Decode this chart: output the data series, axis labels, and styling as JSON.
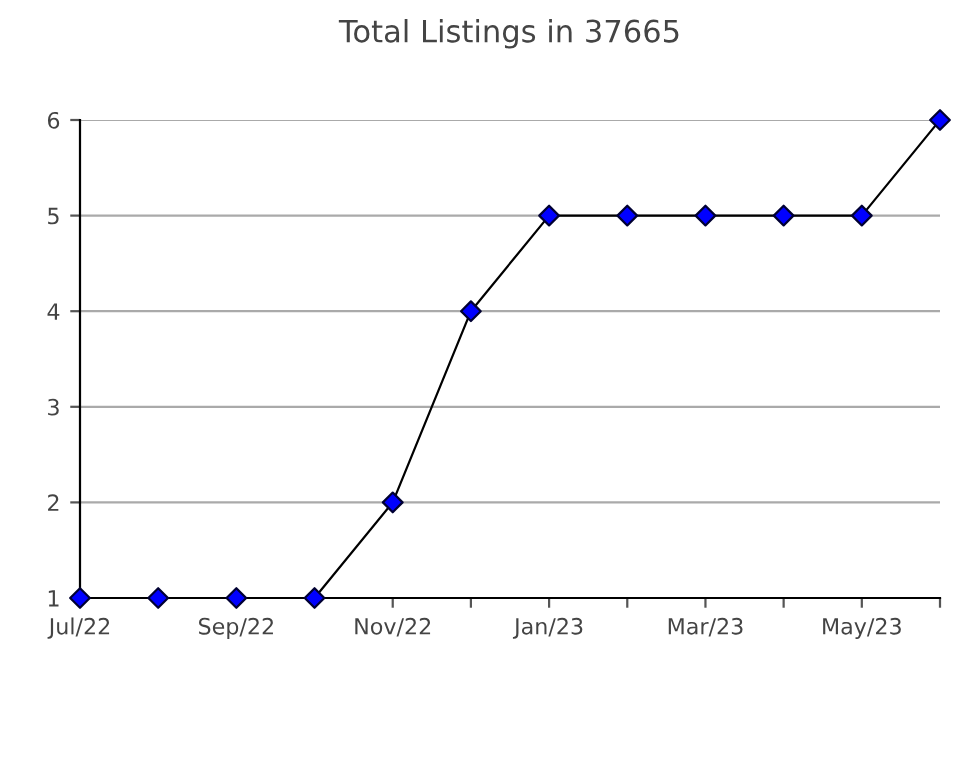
{
  "chart_data": {
    "type": "line",
    "title": "Total Listings in 37665",
    "categories": [
      "Jul/22",
      null,
      "Sep/22",
      null,
      "Nov/22",
      null,
      "Jan/23",
      null,
      "Mar/23",
      null,
      "May/23",
      null
    ],
    "series": [
      {
        "color": "#000000",
        "colors": [
          "#0000ff",
          "#0000ff",
          "#0000ff",
          "#0000ff",
          "#0000ff",
          "#0000ff",
          "#0000ff",
          "#0000ff",
          "#0000ff",
          "#0000ff",
          "#0000ff",
          "#0000ff"
        ],
        "values": [
          1,
          1,
          1,
          1,
          2,
          4,
          5,
          5,
          5,
          5,
          5,
          6
        ]
      }
    ],
    "ylim": [
      1,
      6
    ],
    "yticks": [
      1,
      2,
      3,
      4,
      5,
      6
    ],
    "grid": "y",
    "marker": "diamond",
    "line_style": "solid",
    "legend": false
  }
}
